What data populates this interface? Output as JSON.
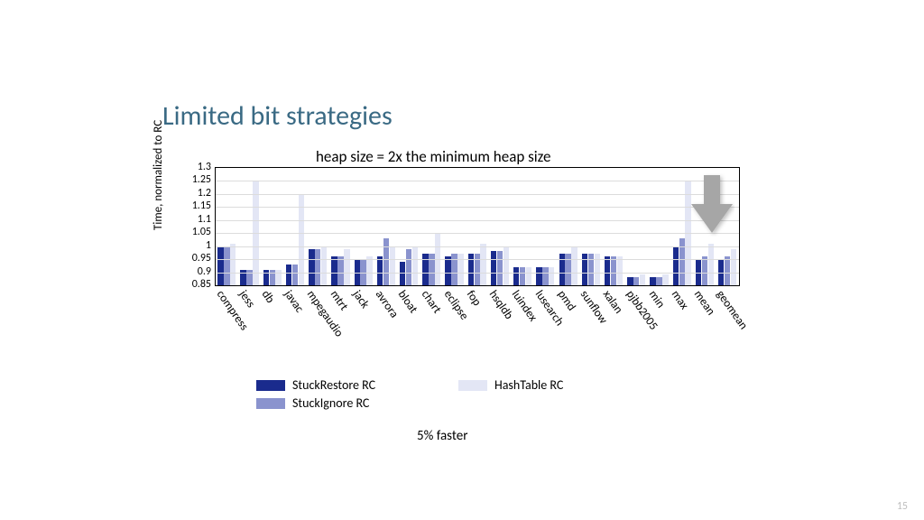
{
  "title": "Limited bit strategies",
  "chart_title": "heap size = 2x the minimum heap size",
  "ylabel": "Time, normalized to RC",
  "page_number": "15",
  "caption": "5% faster",
  "chart": {
    "type": "bar",
    "ylim": [
      0.85,
      1.3
    ],
    "yticks": [
      0.85,
      0.9,
      0.95,
      1,
      1.05,
      1.1,
      1.15,
      1.2,
      1.25,
      1.3
    ],
    "grid_color": "#dcdcdc",
    "border_color": "#000000",
    "background_color": "#ffffff",
    "series": [
      {
        "name": "StuckRestore RC",
        "color": "#1a2b8d"
      },
      {
        "name": "StuckIgnore RC",
        "color": "#8a93ce"
      },
      {
        "name": "HashTable RC",
        "color": "#e3e6f5"
      }
    ],
    "categories": [
      "compress",
      "jess",
      "db",
      "javac",
      "mpegaudio",
      "mtrt",
      "jack",
      "avrora",
      "bloat",
      "chart",
      "eclipse",
      "fop",
      "hsqldb",
      "luindex",
      "lusearch",
      "pmd",
      "sunflow",
      "xalan",
      "pjbb2005",
      "min",
      "max",
      "mean",
      "geomean"
    ],
    "values": [
      [
        1.0,
        1.0,
        1.01
      ],
      [
        0.91,
        0.91,
        1.25
      ],
      [
        0.91,
        0.91,
        0.91
      ],
      [
        0.93,
        0.93,
        1.2
      ],
      [
        0.99,
        0.99,
        1.0
      ],
      [
        0.96,
        0.96,
        0.99
      ],
      [
        0.95,
        0.95,
        0.96
      ],
      [
        0.96,
        1.03,
        1.0
      ],
      [
        0.94,
        0.99,
        1.0
      ],
      [
        0.97,
        0.97,
        1.05
      ],
      [
        0.96,
        0.97,
        0.97
      ],
      [
        0.97,
        0.97,
        1.01
      ],
      [
        0.98,
        0.98,
        1.0
      ],
      [
        0.92,
        0.92,
        0.92
      ],
      [
        0.92,
        0.92,
        0.92
      ],
      [
        0.97,
        0.97,
        1.0
      ],
      [
        0.97,
        0.97,
        0.97
      ],
      [
        0.96,
        0.96,
        0.96
      ],
      [
        0.88,
        0.88,
        0.89
      ],
      [
        0.88,
        0.88,
        0.89
      ],
      [
        1.0,
        1.03,
        1.25
      ],
      [
        0.95,
        0.96,
        1.01
      ],
      [
        0.95,
        0.96,
        0.99
      ]
    ],
    "group_width_ratio": 0.82,
    "bar_fontsize": 12,
    "tick_fontsize": 13
  },
  "arrow": {
    "color": "#a6a6a6",
    "shadow": "rgba(0,0,0,0.25)"
  }
}
